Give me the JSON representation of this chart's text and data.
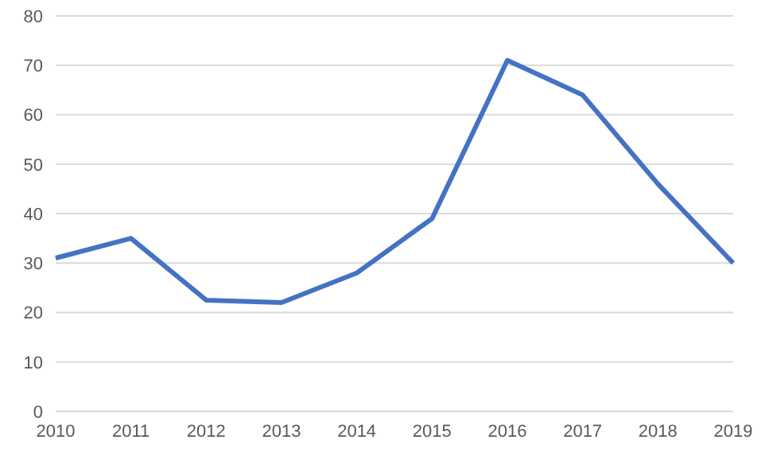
{
  "chart_data": {
    "type": "line",
    "categories": [
      "2010",
      "2011",
      "2012",
      "2013",
      "2014",
      "2015",
      "2016",
      "2017",
      "2018",
      "2019"
    ],
    "series": [
      {
        "color": "#4472c4",
        "values": [
          31,
          35,
          22.5,
          22,
          28,
          39,
          71,
          64,
          46,
          30
        ]
      }
    ],
    "ylim": [
      0,
      80
    ],
    "yticks": [
      0,
      10,
      20,
      30,
      40,
      50,
      60,
      70,
      80
    ],
    "grid": "y",
    "legend": false,
    "marker": "none",
    "line_style": "solid"
  }
}
